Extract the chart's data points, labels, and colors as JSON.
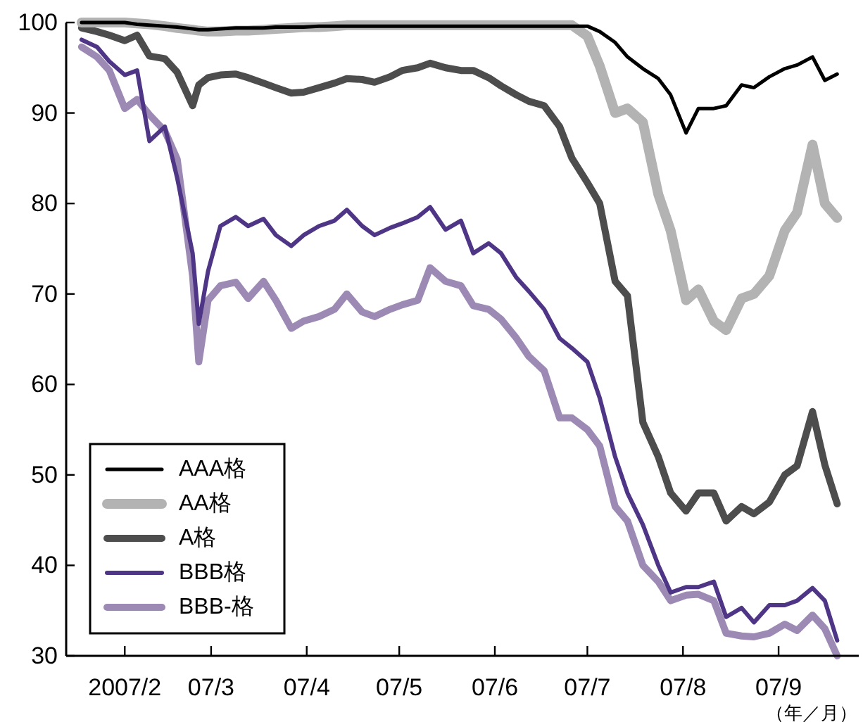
{
  "chart_data": {
    "type": "line",
    "x": [
      "2007-01-18",
      "2007-01-23",
      "2007-01-27",
      "2007-02-01",
      "2007-02-05",
      "2007-02-09",
      "2007-02-14",
      "2007-02-18",
      "2007-02-23",
      "2007-02-25",
      "2007-02-28",
      "2007-03-04",
      "2007-03-09",
      "2007-03-13",
      "2007-03-18",
      "2007-03-22",
      "2007-03-27",
      "2007-03-31",
      "2007-04-05",
      "2007-04-10",
      "2007-04-14",
      "2007-04-19",
      "2007-04-23",
      "2007-04-28",
      "2007-05-02",
      "2007-05-07",
      "2007-05-11",
      "2007-05-16",
      "2007-05-21",
      "2007-05-25",
      "2007-05-30",
      "2007-06-03",
      "2007-06-08",
      "2007-06-12",
      "2007-06-17",
      "2007-06-22",
      "2007-06-26",
      "2007-07-01",
      "2007-07-05",
      "2007-07-10",
      "2007-07-14",
      "2007-07-19",
      "2007-07-24",
      "2007-07-28",
      "2007-08-02",
      "2007-08-06",
      "2007-08-11",
      "2007-08-15",
      "2007-08-20",
      "2007-08-24",
      "2007-08-29",
      "2007-09-03",
      "2007-09-07",
      "2007-09-12",
      "2007-09-16",
      "2007-09-20"
    ],
    "series": [
      {
        "name": "AAA格",
        "color": "#000000",
        "values": [
          100,
          100,
          100,
          100,
          99.8,
          99.7,
          99.6,
          99.5,
          99.3,
          99.2,
          99.2,
          99.3,
          99.4,
          99.4,
          99.4,
          99.5,
          99.5,
          99.5,
          99.6,
          99.6,
          99.6,
          99.6,
          99.6,
          99.6,
          99.6,
          99.6,
          99.6,
          99.6,
          99.6,
          99.6,
          99.6,
          99.6,
          99.6,
          99.6,
          99.6,
          99.6,
          99.6,
          99.6,
          99.0,
          97.8,
          96.2,
          94.9,
          93.8,
          92.0,
          87.8,
          90.5,
          90.5,
          90.8,
          93.1,
          92.8,
          94,
          94.9,
          95.3,
          96.2,
          93.6,
          94.3
        ]
      },
      {
        "name": "AA格",
        "color": "#b3b3b3",
        "values": [
          100,
          100,
          100,
          100,
          99.9,
          99.8,
          99.6,
          99.4,
          99.2,
          99.1,
          99.0,
          99.0,
          99.1,
          99.1,
          99.2,
          99.3,
          99.4,
          99.5,
          99.5,
          99.6,
          99.7,
          99.7,
          99.7,
          99.7,
          99.7,
          99.7,
          99.7,
          99.7,
          99.7,
          99.7,
          99.7,
          99.7,
          99.7,
          99.7,
          99.7,
          99.7,
          99.7,
          98.5,
          95.2,
          90,
          90.5,
          89,
          81,
          77,
          69.3,
          70.5,
          67,
          66,
          69.5,
          70,
          72,
          77,
          79,
          86.5,
          80,
          78.4
        ]
      },
      {
        "name": "A格",
        "color": "#4d4d4d",
        "values": [
          99.4,
          99,
          98.6,
          98,
          98.6,
          96.3,
          96,
          94.5,
          90.8,
          93.1,
          93.9,
          94.2,
          94.3,
          93.9,
          93.3,
          92.8,
          92.2,
          92.3,
          92.8,
          93.3,
          93.8,
          93.7,
          93.4,
          94,
          94.7,
          95,
          95.5,
          95,
          94.7,
          94.7,
          93.9,
          93,
          92,
          91.3,
          90.8,
          88.5,
          85,
          82.3,
          80,
          71.4,
          69.8,
          55.8,
          52,
          48,
          46,
          48,
          48,
          44.9,
          46.5,
          45.7,
          47,
          50,
          51,
          57,
          51.1,
          46.8
        ]
      },
      {
        "name": "BBB格",
        "color": "#4f3585",
        "values": [
          98.1,
          97.3,
          95.7,
          94.2,
          94.7,
          86.9,
          88.5,
          82.8,
          74.5,
          66.7,
          72.5,
          77.5,
          78.5,
          77.5,
          78.3,
          76.5,
          75.3,
          76.5,
          77.5,
          78.1,
          79.3,
          77.5,
          76.5,
          77.3,
          77.8,
          78.5,
          79.6,
          77.1,
          78.1,
          74.5,
          75.6,
          74.5,
          71.8,
          70.3,
          68.3,
          65.1,
          64,
          62.5,
          58.5,
          52,
          48,
          44.5,
          40,
          37,
          37.6,
          37.6,
          38.2,
          34.3,
          35.3,
          33.7,
          35.6,
          35.6,
          36.1,
          37.5,
          36.1,
          31.7
        ]
      },
      {
        "name": "BBB-格",
        "color": "#9c8ab5",
        "values": [
          97.3,
          96.2,
          94.7,
          90.5,
          91.5,
          89.8,
          88,
          84.9,
          72,
          62.5,
          69.3,
          70.9,
          71.3,
          69.5,
          71.4,
          69.3,
          66.2,
          67,
          67.5,
          68.3,
          70,
          68,
          67.5,
          68.3,
          68.8,
          69.3,
          72.9,
          71.4,
          70.9,
          68.7,
          68.3,
          67.2,
          65.1,
          63.1,
          61.5,
          56.3,
          56.3,
          55,
          53.2,
          46.5,
          44.9,
          40,
          38.2,
          36.1,
          36.7,
          36.8,
          36.1,
          32.5,
          32.2,
          32.1,
          32.5,
          33.5,
          32.8,
          34.5,
          33,
          30
        ]
      }
    ],
    "xlim": [
      "2007-01-13",
      "2007-09-27"
    ],
    "xticks": [
      {
        "value": "2007-02-01",
        "label": "2007/2"
      },
      {
        "value": "2007-03-01",
        "label": "07/3"
      },
      {
        "value": "2007-04-01",
        "label": "07/4"
      },
      {
        "value": "2007-05-01",
        "label": "07/5"
      },
      {
        "value": "2007-06-01",
        "label": "07/6"
      },
      {
        "value": "2007-07-01",
        "label": "07/7"
      },
      {
        "value": "2007-08-01",
        "label": "07/8"
      },
      {
        "value": "2007-09-01",
        "label": "07/9"
      }
    ],
    "ylim": [
      30,
      100
    ],
    "yticks": [
      30,
      40,
      50,
      60,
      70,
      80,
      90,
      100
    ],
    "legend": "bottom left",
    "annotations": [
      "（年／月）"
    ]
  }
}
